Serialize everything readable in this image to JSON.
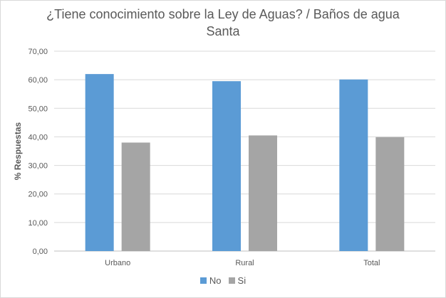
{
  "chart_data": {
    "type": "bar",
    "title_lines": [
      "¿Tiene conocimiento sobre la Ley de Aguas? / Baños de agua",
      "Santa"
    ],
    "xlabel": "",
    "ylabel": "% Respuestas",
    "categories": [
      "Urbano",
      "Rural",
      "Total"
    ],
    "series": [
      {
        "name": "No",
        "color": "#5b9bd5",
        "values": [
          62.0,
          59.5,
          60.1
        ]
      },
      {
        "name": "Si",
        "color": "#a5a5a5",
        "values": [
          38.0,
          40.5,
          39.9
        ]
      }
    ],
    "ylim": [
      0,
      70
    ],
    "yticks": [
      0,
      10,
      20,
      30,
      40,
      50,
      60,
      70
    ],
    "ytick_labels": [
      "0,00",
      "10,00",
      "20,00",
      "30,00",
      "40,00",
      "50,00",
      "60,00",
      "70,00"
    ],
    "grid": true,
    "legend_position": "bottom"
  }
}
